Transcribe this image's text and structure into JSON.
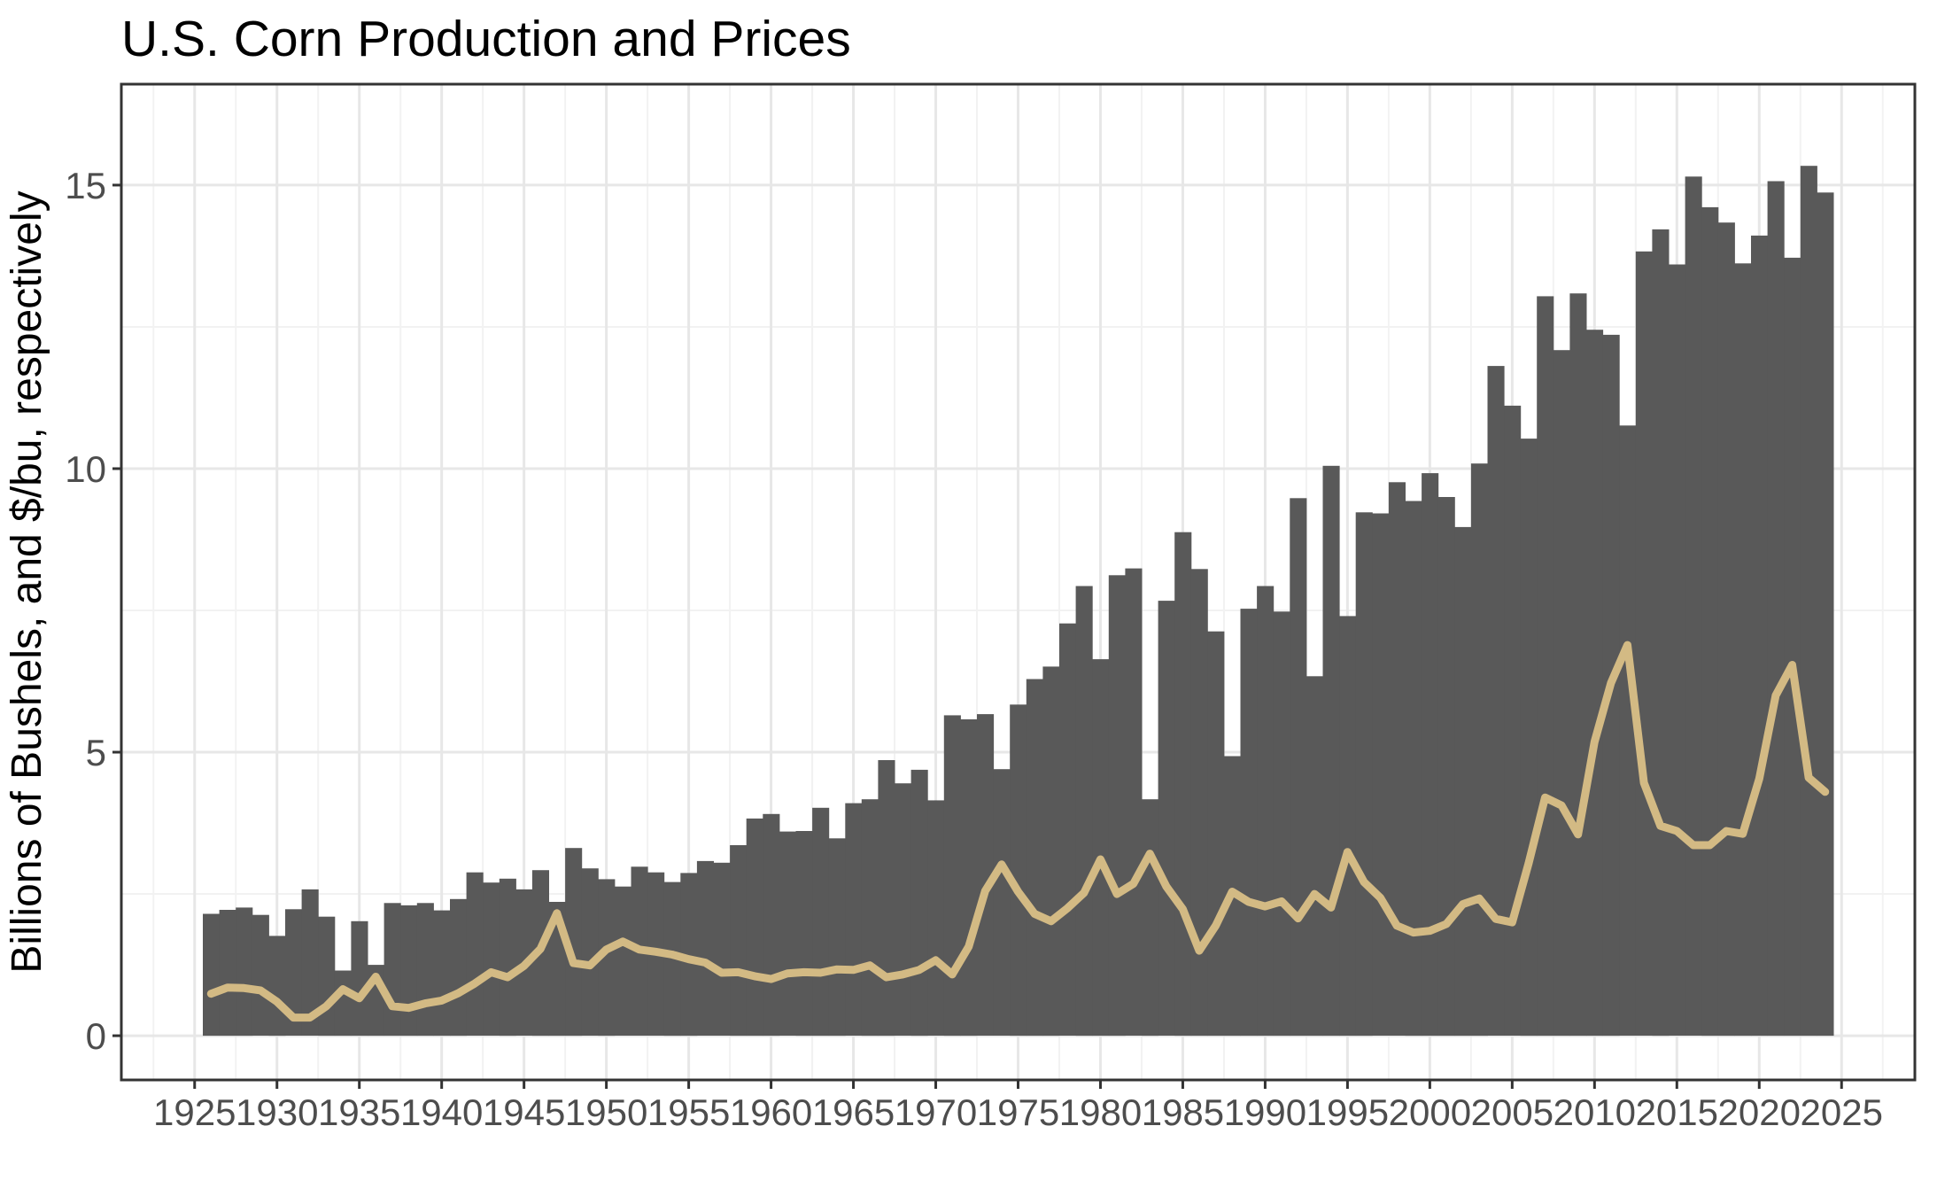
{
  "title": "U.S. Corn Production and Prices",
  "y_axis_label": "Billions of Bushels, and $/bu, respectively",
  "colors": {
    "background": "#FFFFFF",
    "panel_background": "#FFFFFF",
    "bar": "#595959",
    "line": "#D3BA84",
    "grid_major": "#E7E7E7",
    "grid_minor": "#F2F2F2",
    "panel_border": "#333333",
    "tick_mark": "#333333",
    "tick_label": "#4D4D4D"
  },
  "chart_data": {
    "type": "bar+line",
    "title": "U.S. Corn Production and Prices",
    "xlabel": "",
    "ylabel": "Billions of Bushels, and $/bu, respectively",
    "grid": true,
    "legend": "none",
    "xlim": [
      1920.55,
      2029.45
    ],
    "ylim": [
      -0.78,
      16.78
    ],
    "x_ticks": [
      1925,
      1930,
      1935,
      1940,
      1945,
      1950,
      1955,
      1960,
      1965,
      1970,
      1975,
      1980,
      1985,
      1990,
      1995,
      2000,
      2005,
      2010,
      2015,
      2020,
      2025
    ],
    "y_ticks": [
      0,
      5,
      10,
      15
    ],
    "x_minor_ticks": [
      1922.5,
      1927.5,
      1932.5,
      1937.5,
      1942.5,
      1947.5,
      1952.5,
      1957.5,
      1962.5,
      1967.5,
      1972.5,
      1977.5,
      1982.5,
      1987.5,
      1992.5,
      1997.5,
      2002.5,
      2007.5,
      2012.5,
      2017.5,
      2022.5,
      2027.5
    ],
    "y_minor_ticks": [
      2.5,
      7.5,
      12.5
    ],
    "x": [
      1926,
      1927,
      1928,
      1929,
      1930,
      1931,
      1932,
      1933,
      1934,
      1935,
      1936,
      1937,
      1938,
      1939,
      1940,
      1941,
      1942,
      1943,
      1944,
      1945,
      1946,
      1947,
      1948,
      1949,
      1950,
      1951,
      1952,
      1953,
      1954,
      1955,
      1956,
      1957,
      1958,
      1959,
      1960,
      1961,
      1962,
      1963,
      1964,
      1965,
      1966,
      1967,
      1968,
      1969,
      1970,
      1971,
      1972,
      1973,
      1974,
      1975,
      1976,
      1977,
      1978,
      1979,
      1980,
      1981,
      1982,
      1983,
      1984,
      1985,
      1986,
      1987,
      1988,
      1989,
      1990,
      1991,
      1992,
      1993,
      1994,
      1995,
      1996,
      1997,
      1998,
      1999,
      2000,
      2001,
      2002,
      2003,
      2004,
      2005,
      2006,
      2007,
      2008,
      2009,
      2010,
      2011,
      2012,
      2013,
      2014,
      2015,
      2016,
      2017,
      2018,
      2019,
      2020,
      2021,
      2022,
      2023,
      2024
    ],
    "series": [
      {
        "name": "Corn production",
        "unit": "billion bushels",
        "type": "bar",
        "color": "#595959",
        "values": [
          2.15,
          2.22,
          2.26,
          2.13,
          1.76,
          2.23,
          2.58,
          2.1,
          1.15,
          2.02,
          1.25,
          2.34,
          2.3,
          2.34,
          2.21,
          2.41,
          2.88,
          2.7,
          2.77,
          2.58,
          2.92,
          2.36,
          3.31,
          2.95,
          2.76,
          2.63,
          2.98,
          2.88,
          2.71,
          2.87,
          3.08,
          3.05,
          3.36,
          3.83,
          3.91,
          3.6,
          3.61,
          4.02,
          3.48,
          4.1,
          4.17,
          4.86,
          4.45,
          4.69,
          4.15,
          5.65,
          5.58,
          5.67,
          4.7,
          5.84,
          6.29,
          6.51,
          7.27,
          7.93,
          6.64,
          8.12,
          8.24,
          4.17,
          7.67,
          8.88,
          8.23,
          7.13,
          4.93,
          7.53,
          7.93,
          7.48,
          9.48,
          6.34,
          10.05,
          7.4,
          9.23,
          9.21,
          9.76,
          9.43,
          9.92,
          9.5,
          8.97,
          10.09,
          11.81,
          11.11,
          10.53,
          13.04,
          12.09,
          13.09,
          12.45,
          12.36,
          10.76,
          13.83,
          14.22,
          13.6,
          15.15,
          14.61,
          14.34,
          13.62,
          14.11,
          15.07,
          13.72,
          15.34,
          14.87
        ]
      },
      {
        "name": "Corn price",
        "unit": "$/bu",
        "type": "line",
        "color": "#D3BA84",
        "values": [
          0.74,
          0.85,
          0.84,
          0.8,
          0.6,
          0.32,
          0.32,
          0.52,
          0.82,
          0.66,
          1.04,
          0.52,
          0.49,
          0.57,
          0.62,
          0.75,
          0.92,
          1.12,
          1.03,
          1.23,
          1.53,
          2.16,
          1.28,
          1.24,
          1.52,
          1.66,
          1.52,
          1.48,
          1.43,
          1.35,
          1.29,
          1.11,
          1.12,
          1.05,
          1.0,
          1.1,
          1.12,
          1.11,
          1.17,
          1.16,
          1.24,
          1.03,
          1.08,
          1.16,
          1.33,
          1.08,
          1.57,
          2.55,
          3.02,
          2.54,
          2.15,
          2.02,
          2.25,
          2.52,
          3.11,
          2.5,
          2.68,
          3.21,
          2.63,
          2.23,
          1.5,
          1.94,
          2.54,
          2.36,
          2.28,
          2.37,
          2.07,
          2.5,
          2.26,
          3.24,
          2.71,
          2.43,
          1.94,
          1.82,
          1.85,
          1.97,
          2.32,
          2.42,
          2.06,
          2.0,
          3.04,
          4.2,
          4.06,
          3.55,
          5.18,
          6.22,
          6.89,
          4.46,
          3.7,
          3.61,
          3.36,
          3.36,
          3.61,
          3.56,
          4.53,
          6.0,
          6.54,
          4.55,
          4.3
        ]
      }
    ]
  }
}
